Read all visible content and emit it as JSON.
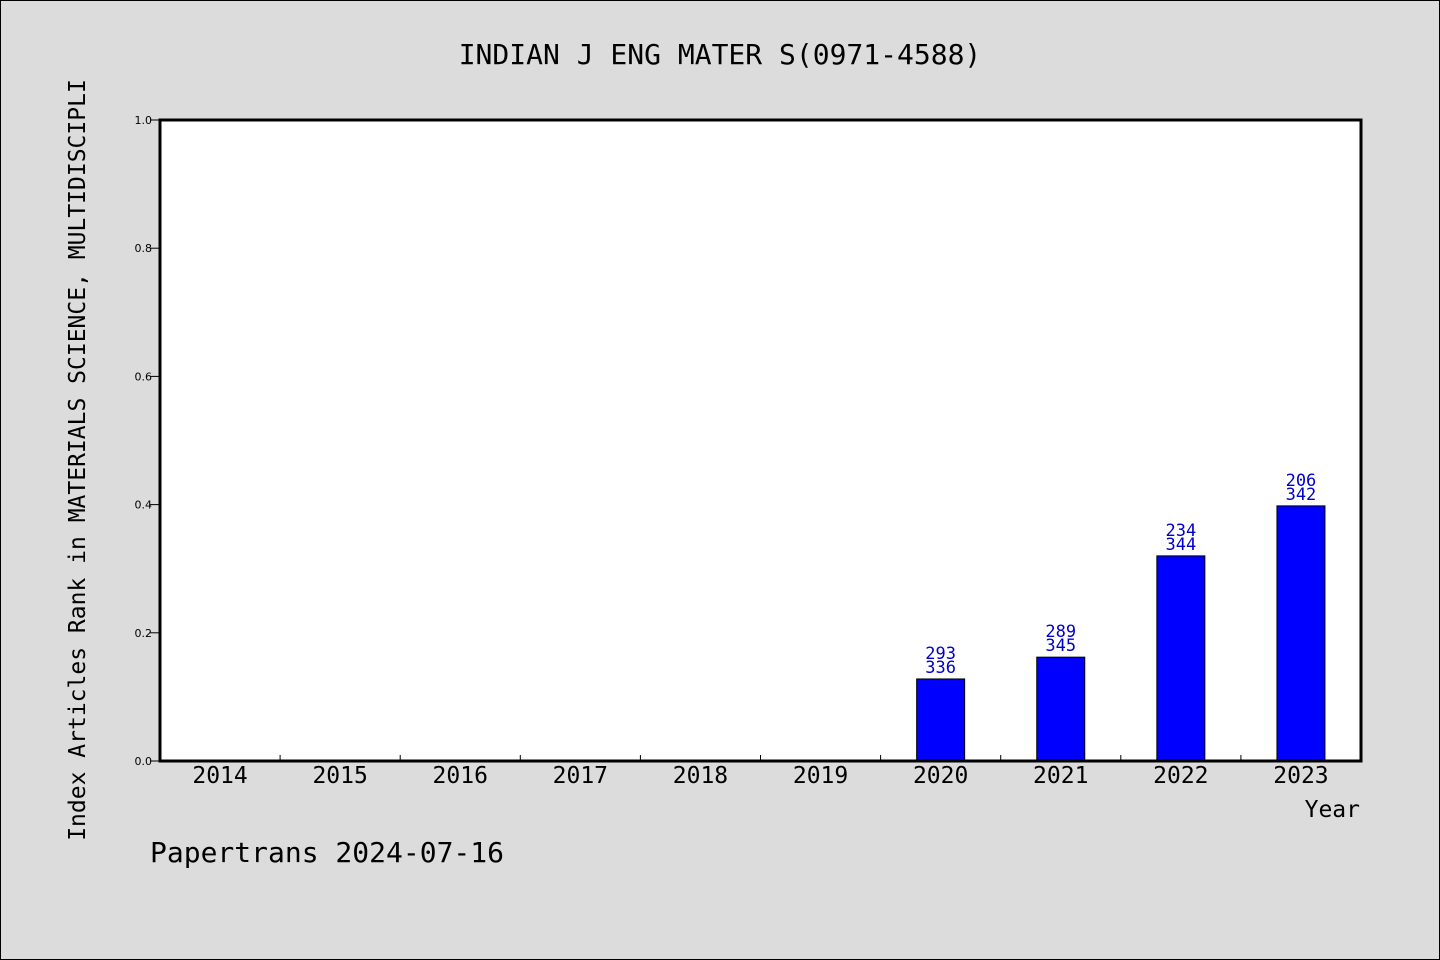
{
  "footer": "Papertrans 2024-07-16",
  "colors": {
    "bar": "#0000ff",
    "label": "#0000cc",
    "background": "#dcdcdc",
    "plot": "#ffffff"
  },
  "chart_data": {
    "type": "bar",
    "title": "INDIAN J ENG MATER S(0971-4588)",
    "xlabel": "Year",
    "ylabel": "Index Articles Rank in MATERIALS SCIENCE, MULTIDISCIPLI",
    "ylim": [
      0,
      1.0
    ],
    "yticks": [
      "0.0",
      "0.2",
      "0.4",
      "0.6",
      "0.8",
      "1.0"
    ],
    "categories": [
      "2014",
      "2015",
      "2016",
      "2017",
      "2018",
      "2019",
      "2020",
      "2021",
      "2022",
      "2023"
    ],
    "values": [
      0,
      0,
      0,
      0,
      0,
      0,
      0.128,
      0.162,
      0.32,
      0.398
    ],
    "labels": [
      null,
      null,
      null,
      null,
      null,
      null,
      [
        "293",
        "336"
      ],
      [
        "289",
        "345"
      ],
      [
        "234",
        "344"
      ],
      [
        "206",
        "342"
      ]
    ],
    "grid": false,
    "legend": "none"
  }
}
